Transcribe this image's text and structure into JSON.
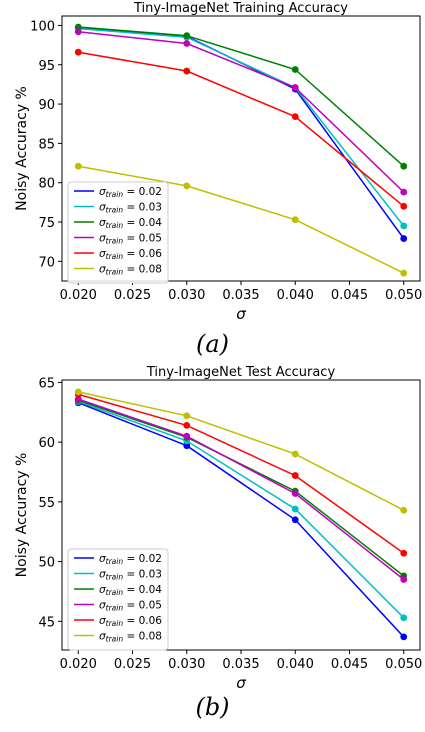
{
  "captions": [
    "(a)",
    "(b)"
  ],
  "series_colors": [
    "#0000ff",
    "#00bfbf",
    "#008000",
    "#bf00bf",
    "#ff0000",
    "#bfbf00"
  ],
  "chart_data": [
    {
      "type": "line",
      "title": "Tiny-ImageNet Training Accuracy",
      "xlabel": "σ",
      "ylabel": "Noisy Accuracy %",
      "x": [
        0.02,
        0.03,
        0.04,
        0.05
      ],
      "xticks": [
        "0.020",
        "0.025",
        "0.030",
        "0.035",
        "0.040",
        "0.045",
        "0.050"
      ],
      "yticks": [
        "70",
        "75",
        "80",
        "85",
        "90",
        "95",
        "100"
      ],
      "xlim": [
        0.0185,
        0.0515
      ],
      "ylim": [
        67.5,
        101.2
      ],
      "legend_loc": "lower-left",
      "series": [
        {
          "name": "σtrain = 0.02",
          "values": [
            99.7,
            98.6,
            91.9,
            72.9
          ]
        },
        {
          "name": "σtrain = 0.03",
          "values": [
            99.6,
            98.5,
            92.1,
            74.5
          ]
        },
        {
          "name": "σtrain = 0.04",
          "values": [
            99.8,
            98.7,
            94.4,
            82.1
          ]
        },
        {
          "name": "σtrain = 0.05",
          "values": [
            99.2,
            97.7,
            92.1,
            78.8
          ]
        },
        {
          "name": "σtrain = 0.06",
          "values": [
            96.6,
            94.2,
            88.4,
            77.0
          ]
        },
        {
          "name": "σtrain = 0.08",
          "values": [
            82.1,
            79.6,
            75.3,
            68.5
          ]
        }
      ]
    },
    {
      "type": "line",
      "title": "Tiny-ImageNet Test Accuracy",
      "xlabel": "σ",
      "ylabel": "Noisy Accuracy %",
      "x": [
        0.02,
        0.03,
        0.04,
        0.05
      ],
      "xticks": [
        "0.020",
        "0.025",
        "0.030",
        "0.035",
        "0.040",
        "0.045",
        "0.050"
      ],
      "yticks": [
        "45",
        "50",
        "55",
        "60",
        "65"
      ],
      "xlim": [
        0.0185,
        0.0515
      ],
      "ylim": [
        42.6,
        65.2
      ],
      "legend_loc": "lower-left",
      "series": [
        {
          "name": "σtrain = 0.02",
          "values": [
            63.3,
            59.7,
            53.5,
            43.7
          ]
        },
        {
          "name": "σtrain = 0.03",
          "values": [
            63.4,
            60.1,
            54.4,
            45.3
          ]
        },
        {
          "name": "σtrain = 0.04",
          "values": [
            63.5,
            60.4,
            55.9,
            48.8
          ]
        },
        {
          "name": "σtrain = 0.05",
          "values": [
            63.6,
            60.5,
            55.7,
            48.5
          ]
        },
        {
          "name": "σtrain = 0.06",
          "values": [
            64.0,
            61.4,
            57.2,
            50.7
          ]
        },
        {
          "name": "σtrain = 0.08",
          "values": [
            64.2,
            62.2,
            59.0,
            54.3
          ]
        }
      ]
    }
  ]
}
